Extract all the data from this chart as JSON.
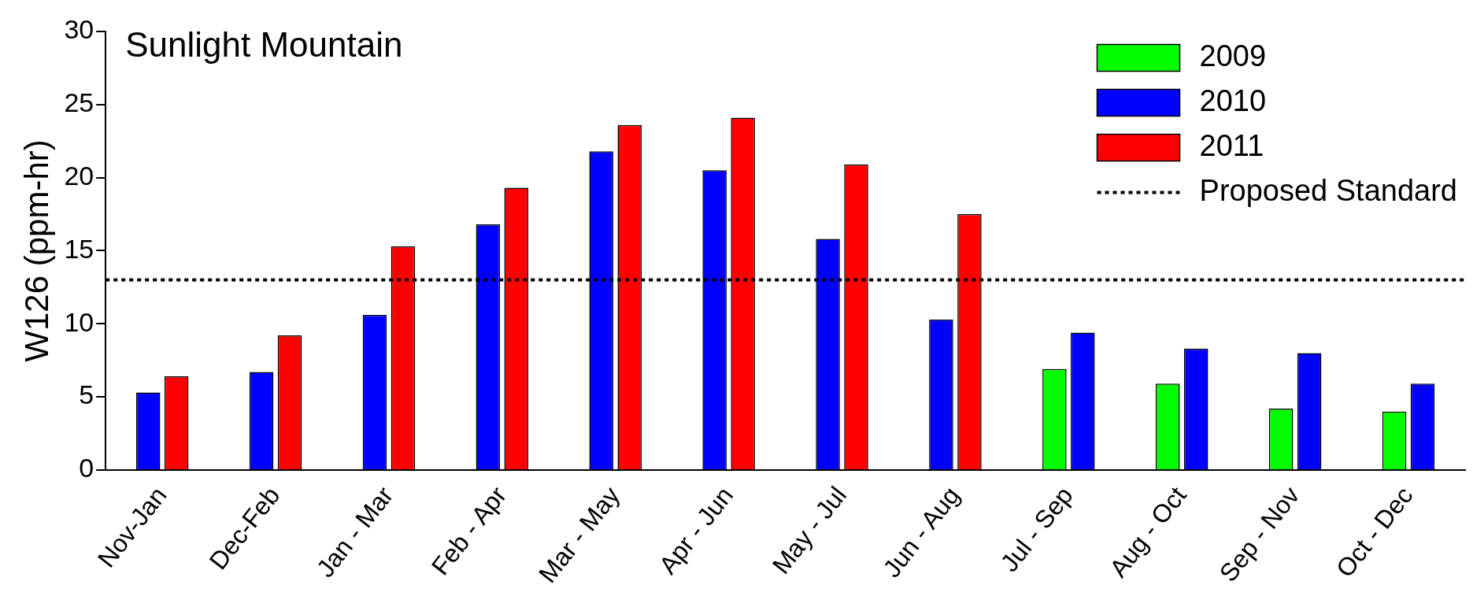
{
  "chart_data": {
    "type": "bar",
    "title": "Sunlight Mountain",
    "ylabel": "W126 (ppm-hr)",
    "categories": [
      "Nov-Jan",
      "Dec-Feb",
      "Jan - Mar",
      "Feb - Apr",
      "Mar - May",
      "Apr - Jun",
      "May - Jul",
      "Jun - Aug",
      "Jul - Sep",
      "Aug - Oct",
      "Sep - Nov",
      "Oct - Dec"
    ],
    "series": [
      {
        "name": "2009",
        "color": "#00ff00",
        "values": [
          null,
          null,
          null,
          null,
          null,
          null,
          null,
          null,
          6.9,
          5.9,
          4.2,
          4.0
        ]
      },
      {
        "name": "2010",
        "color": "#0000ff",
        "values": [
          5.3,
          6.7,
          10.6,
          16.8,
          21.8,
          20.5,
          15.8,
          10.3,
          9.4,
          8.3,
          8.0,
          5.9
        ]
      },
      {
        "name": "2011",
        "color": "#ff0000",
        "values": [
          6.4,
          9.2,
          15.3,
          19.3,
          23.6,
          24.1,
          20.9,
          17.5,
          null,
          null,
          null,
          null
        ]
      }
    ],
    "ylim": [
      0,
      30
    ],
    "yticks": [
      0,
      5,
      10,
      15,
      20,
      25,
      30
    ],
    "grid": false,
    "legend": "top right",
    "ref_lines": [
      {
        "axis": "y",
        "value": 13,
        "label": "Proposed Standard",
        "color": "#000000",
        "line_style": "dotted"
      }
    ]
  }
}
